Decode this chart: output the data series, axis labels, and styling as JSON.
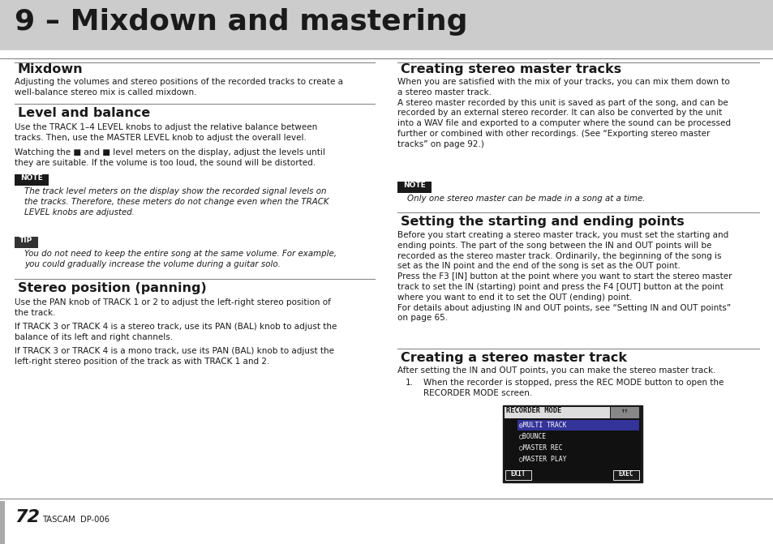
{
  "title": "9 – Mixdown and mastering",
  "title_bg": "#cccccc",
  "page_bg": "#ffffff",
  "page_num": "72",
  "page_brand": "TASCAM  DP-006",
  "fig_w": 9.54,
  "fig_h": 6.71,
  "dpi": 100
}
